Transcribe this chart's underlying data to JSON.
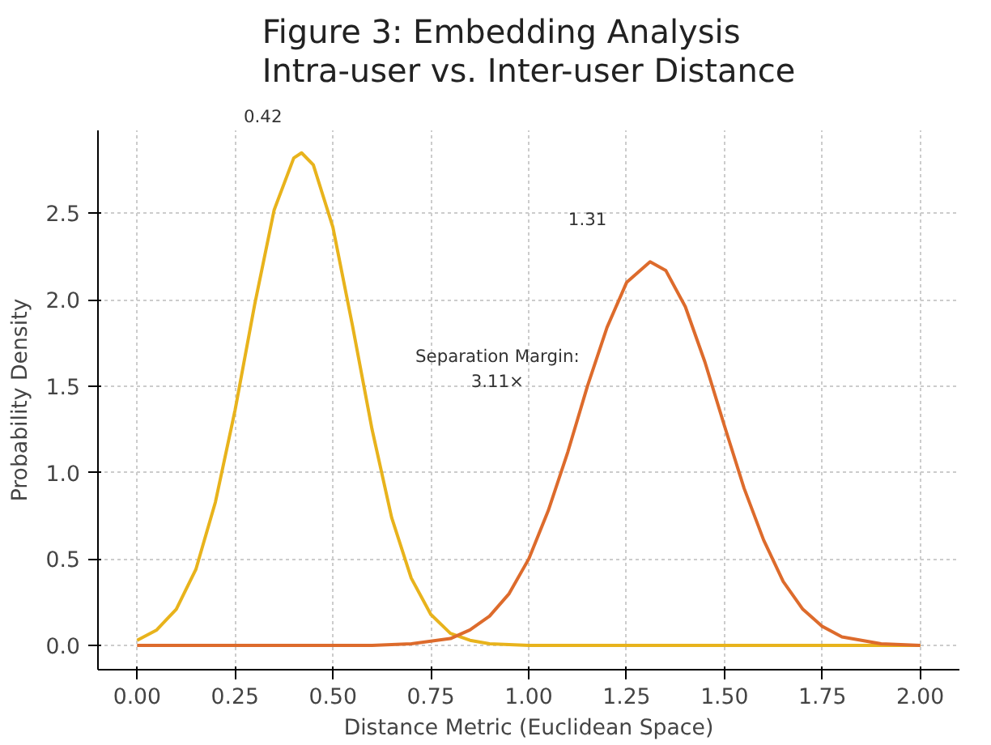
{
  "chart_data": {
    "type": "line",
    "title": "Figure 3: Embedding Analysis\nIntra-user vs. Inter-user Distance",
    "xlabel": "Distance Metric (Euclidean Space)",
    "ylabel": "Probability Density",
    "xlim": [
      -0.1,
      2.1
    ],
    "ylim": [
      -0.14,
      2.98
    ],
    "xticks": [
      {
        "value": 0,
        "label": "0.00"
      },
      0.25,
      {
        "value": 0.5,
        "label": "0.50"
      },
      0.75,
      {
        "value": 1,
        "label": "1.00"
      },
      1.25,
      {
        "value": 1.5,
        "label": "1.50"
      },
      1.75,
      {
        "value": 2,
        "label": "2.00"
      }
    ],
    "yticks": [
      {
        "value": 0,
        "label": "0.0"
      },
      0.5,
      {
        "value": 1,
        "label": "1.0"
      },
      1.5,
      {
        "value": 2,
        "label": "2.0"
      },
      2.5
    ],
    "grid": true,
    "line_style": "solid",
    "series": [
      {
        "color": "#e8b31c",
        "x": [
          0,
          0.05,
          0.1,
          0.15,
          0.2,
          0.25,
          0.3,
          0.35,
          0.4,
          0.42,
          0.45,
          0.5,
          0.55,
          0.6,
          0.65,
          0.7,
          0.75,
          0.8,
          0.85,
          0.9,
          1.0,
          1.5,
          2.0
        ],
        "values": [
          0.03,
          0.09,
          0.21,
          0.44,
          0.83,
          1.36,
          1.97,
          2.52,
          2.82,
          2.85,
          2.78,
          2.42,
          1.85,
          1.25,
          0.74,
          0.39,
          0.18,
          0.07,
          0.03,
          0.01,
          0,
          0,
          0
        ]
      },
      {
        "color": "#dd6b2c",
        "x": [
          0,
          0.3,
          0.6,
          0.7,
          0.8,
          0.85,
          0.9,
          0.95,
          1.0,
          1.05,
          1.1,
          1.15,
          1.2,
          1.25,
          1.31,
          1.35,
          1.4,
          1.45,
          1.5,
          1.55,
          1.6,
          1.65,
          1.7,
          1.75,
          1.8,
          1.9,
          2.0
        ],
        "values": [
          0,
          0,
          0,
          0.01,
          0.04,
          0.09,
          0.17,
          0.3,
          0.5,
          0.78,
          1.12,
          1.5,
          1.84,
          2.1,
          2.22,
          2.17,
          1.96,
          1.64,
          1.27,
          0.91,
          0.61,
          0.37,
          0.21,
          0.11,
          0.05,
          0.01,
          0
        ]
      }
    ],
    "annotations": [
      "0.42",
      "1.31",
      "Separation Margin:\n3.11×"
    ]
  }
}
